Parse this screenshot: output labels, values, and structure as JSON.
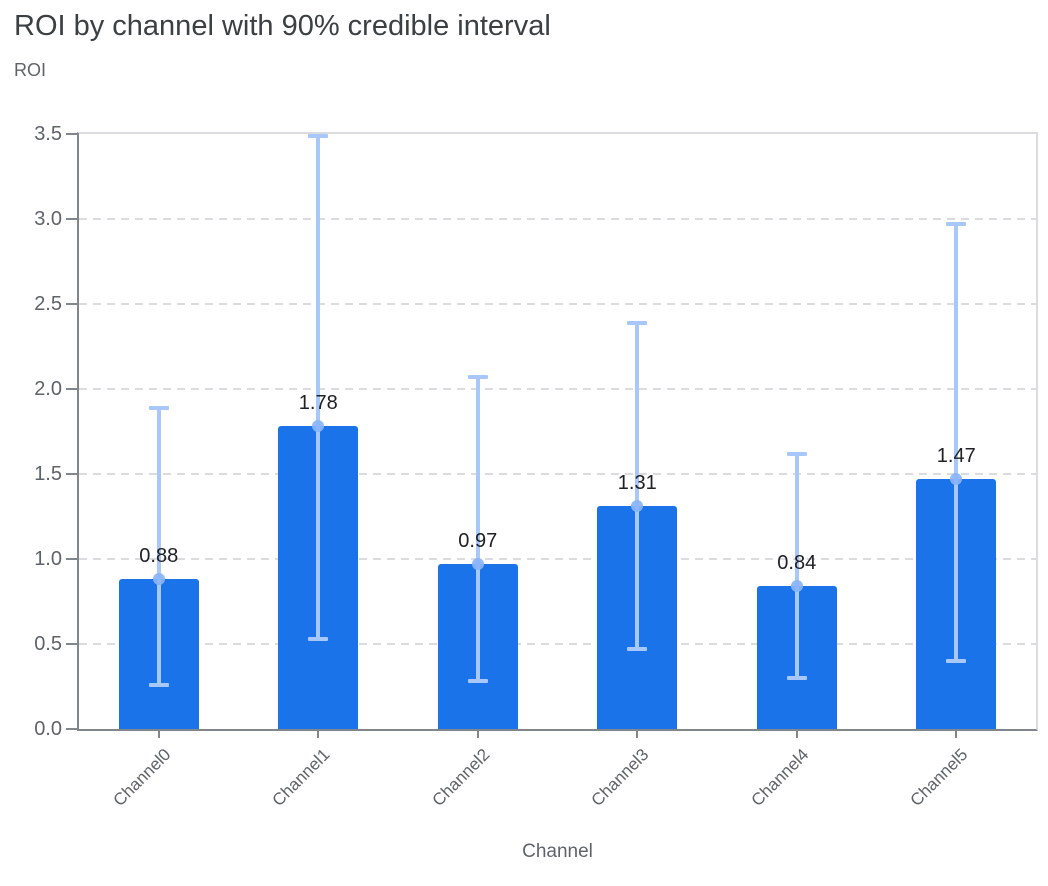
{
  "header": {
    "title": "ROI by channel with 90% credible interval"
  },
  "colors": {
    "bar": "#1a73e8",
    "error_bar": "#a8c7fa",
    "error_dot": "#8ab4f8",
    "title_text": "#3c4043",
    "axis_text": "#5f6368",
    "value_label_text": "#202124",
    "gridline": "#dadce0",
    "axis_line": "#80868b"
  },
  "chart_data": {
    "type": "bar",
    "title": "ROI by channel with 90% credible interval",
    "xlabel": "Channel",
    "ylabel": "ROI",
    "categories": [
      "Channel0",
      "Channel1",
      "Channel2",
      "Channel3",
      "Channel4",
      "Channel5"
    ],
    "values": [
      0.88,
      1.78,
      0.97,
      1.31,
      0.84,
      1.47
    ],
    "value_labels": [
      "0.88",
      "1.78",
      "0.97",
      "1.31",
      "0.84",
      "1.47"
    ],
    "error_low": [
      0.26,
      0.53,
      0.28,
      0.47,
      0.3,
      0.4
    ],
    "error_high": [
      1.89,
      3.49,
      2.07,
      2.39,
      1.62,
      2.97
    ],
    "ylim": [
      0,
      3.5
    ],
    "ytick_labels": [
      "0.0",
      "0.5",
      "1.0",
      "1.5",
      "2.0",
      "2.5",
      "3.0",
      "3.5"
    ],
    "grid": "horizontal-dashed",
    "legend": "none"
  }
}
